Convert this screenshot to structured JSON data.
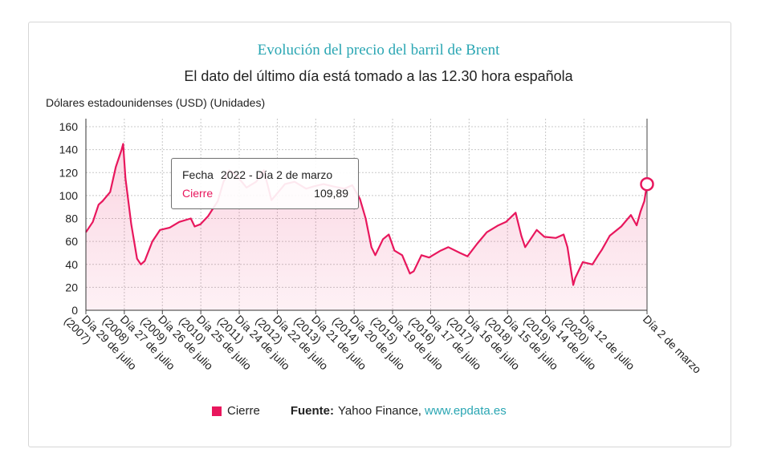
{
  "chart_data": {
    "type": "area",
    "title": "Evolución del precio del barril de Brent",
    "subtitle": "El dato del último día está tomado a las 12.30 hora española",
    "ylabel": "Dólares estadounidenses (USD) (Unidades)",
    "ylim": [
      0,
      160
    ],
    "yticks": [
      0,
      20,
      40,
      60,
      80,
      100,
      120,
      140,
      160
    ],
    "x_tick_labels": [
      "Día 29 de julio (2007)",
      "Día 27 de julio (2008)",
      "Día 26 de julio (2009)",
      "Día 25 de julio (2010)",
      "Día 24 de julio (2011)",
      "Día 22 de julio (2012)",
      "Día 21 de julio (2013)",
      "Día 20 de julio (2014)",
      "Día 19 de julio (2015)",
      "Día 17 de julio (2016)",
      "Día 16 de julio (2017)",
      "Día 15 de julio (2018)",
      "Día 14 de julio (2019)",
      "Día 12 de julio (2020)",
      "Día 2 de marzo"
    ],
    "x_tick_years": [
      2007.57,
      2008.57,
      2009.56,
      2010.56,
      2011.56,
      2012.55,
      2013.55,
      2014.55,
      2015.55,
      2016.54,
      2017.54,
      2018.54,
      2019.53,
      2020.53,
      2022.17
    ],
    "xlim": [
      2007.57,
      2022.17
    ],
    "grid": true,
    "legend_position": "bottom",
    "color": "#e8175d",
    "series": [
      {
        "name": "Cierre",
        "x": [
          2007.57,
          2007.75,
          2007.9,
          2008.0,
          2008.2,
          2008.35,
          2008.5,
          2008.54,
          2008.6,
          2008.75,
          2008.9,
          2009.0,
          2009.1,
          2009.3,
          2009.5,
          2009.75,
          2010.0,
          2010.3,
          2010.4,
          2010.55,
          2010.75,
          2011.0,
          2011.15,
          2011.3,
          2011.5,
          2011.75,
          2012.0,
          2012.2,
          2012.4,
          2012.5,
          2012.75,
          2013.0,
          2013.3,
          2013.5,
          2013.75,
          2014.0,
          2014.3,
          2014.5,
          2014.7,
          2014.85,
          2015.0,
          2015.1,
          2015.3,
          2015.45,
          2015.6,
          2015.8,
          2016.0,
          2016.1,
          2016.3,
          2016.5,
          2016.8,
          2017.0,
          2017.3,
          2017.5,
          2017.75,
          2018.0,
          2018.3,
          2018.5,
          2018.75,
          2018.9,
          2019.0,
          2019.3,
          2019.5,
          2019.8,
          2020.0,
          2020.1,
          2020.25,
          2020.3,
          2020.5,
          2020.75,
          2020.9,
          2021.0,
          2021.2,
          2021.5,
          2021.75,
          2021.9,
          2022.0,
          2022.1,
          2022.17
        ],
        "values": [
          68,
          77,
          92,
          95,
          103,
          125,
          140,
          145,
          115,
          75,
          45,
          40,
          43,
          60,
          70,
          72,
          77,
          80,
          73,
          75,
          82,
          95,
          112,
          122,
          117,
          107,
          112,
          122,
          96,
          100,
          110,
          112,
          106,
          108,
          110,
          108,
          106,
          109,
          97,
          80,
          55,
          48,
          62,
          66,
          52,
          48,
          32,
          34,
          48,
          46,
          52,
          55,
          50,
          47,
          58,
          68,
          74,
          77,
          85,
          65,
          55,
          70,
          64,
          63,
          66,
          55,
          22,
          28,
          42,
          40,
          48,
          53,
          65,
          73,
          83,
          74,
          86,
          95,
          109.89
        ]
      }
    ],
    "tooltip": {
      "fecha_label": "Fecha",
      "fecha_value": "2022 - Día 2 de marzo",
      "series_label": "Cierre",
      "series_value": "109,89"
    },
    "legend_label": "Cierre",
    "source_label": "Fuente:",
    "source_value": "Yahoo Finance,",
    "source_link": "www.epdata.es"
  }
}
